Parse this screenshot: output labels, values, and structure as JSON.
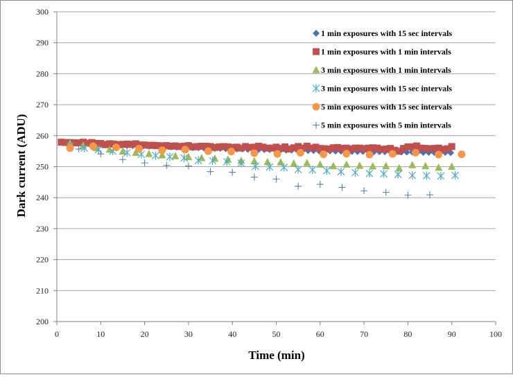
{
  "chart_data": {
    "type": "scatter",
    "title": "",
    "xlabel": "Time (min)",
    "ylabel": "Dark current (ADU)",
    "xlim": [
      0,
      100
    ],
    "ylim": [
      200,
      300
    ],
    "xticks": [
      0,
      10,
      20,
      30,
      40,
      50,
      60,
      70,
      80,
      90,
      100
    ],
    "yticks": [
      200,
      210,
      220,
      230,
      240,
      250,
      260,
      270,
      280,
      290,
      300
    ],
    "grid": "horizontal",
    "legend_position": "top-right",
    "series": [
      {
        "name": "1 min exposures with 15 sec intervals",
        "marker": "diamond",
        "color": "#4472C4",
        "x": [
          1,
          2.25,
          3.5,
          4.75,
          6,
          7.25,
          8.5,
          9.75,
          11,
          12.25,
          13.5,
          14.75,
          16,
          17.25,
          18.5,
          19.75,
          21,
          22.25,
          23.5,
          24.75,
          26,
          27.25,
          28.5,
          29.75,
          31,
          32.25,
          33.5,
          34.75,
          36,
          37.25,
          38.5,
          39.75,
          41,
          42.25,
          43.5,
          44.75,
          46,
          47.25,
          48.5,
          49.75,
          51,
          52.25,
          53.5,
          54.75,
          56,
          57.25,
          58.5,
          59.75,
          61,
          62.25,
          63.5,
          64.75,
          66,
          67.25,
          68.5,
          69.75,
          71,
          72.25,
          73.5,
          74.75,
          76,
          77.25,
          78.5,
          79.75,
          81,
          82.25,
          83.5,
          84.75,
          86,
          87.25,
          88.5,
          89.75
        ],
        "y": [
          257.9,
          257.8,
          257.7,
          257.6,
          257.5,
          257.4,
          257.4,
          257.3,
          257.2,
          257.1,
          257.0,
          257.0,
          256.9,
          256.8,
          256.8,
          256.7,
          256.6,
          256.6,
          256.5,
          256.4,
          256.4,
          256.3,
          256.3,
          256.2,
          256.1,
          256.1,
          256.0,
          256.0,
          255.9,
          255.9,
          255.8,
          255.8,
          255.7,
          255.7,
          255.6,
          255.6,
          255.5,
          255.5,
          255.5,
          255.4,
          255.4,
          255.3,
          255.3,
          255.3,
          255.2,
          255.2,
          255.2,
          255.1,
          255.1,
          255.1,
          255.0,
          255.0,
          255.0,
          254.9,
          254.9,
          254.9,
          254.9,
          254.8,
          254.8,
          254.8,
          254.8,
          254.7,
          254.7,
          254.7,
          254.7,
          254.7,
          254.6,
          254.6,
          254.6,
          254.6,
          254.6,
          254.5
        ]
      },
      {
        "name": "1 min exposures with 1 min intervals",
        "marker": "square",
        "color": "#C0504D",
        "x": [
          1,
          2,
          3,
          4,
          5,
          6,
          7,
          8,
          9,
          10,
          11,
          12,
          13,
          14,
          15,
          16,
          17,
          18,
          19,
          20,
          21,
          22,
          23,
          24,
          25,
          26,
          27,
          28,
          29,
          30,
          31,
          32,
          33,
          34,
          35,
          36,
          37,
          38,
          39,
          40,
          41,
          42,
          43,
          44,
          45,
          46,
          47,
          48,
          49,
          50,
          51,
          52,
          53,
          54,
          55,
          56,
          57,
          58,
          59,
          60,
          61,
          62,
          63,
          64,
          65,
          66,
          67,
          68,
          69,
          70,
          71,
          72,
          73,
          74,
          75,
          76,
          77,
          78,
          79,
          80,
          81,
          82,
          83,
          84,
          85,
          86,
          87,
          88,
          89,
          90
        ],
        "y": [
          257.9,
          257.8,
          257.8,
          257.7,
          257.7,
          257.9,
          257.6,
          257.8,
          257.5,
          257.5,
          257.1,
          257.4,
          257.3,
          257.1,
          257.2,
          257.3,
          257.2,
          257.4,
          257.0,
          257.0,
          256.9,
          256.9,
          256.8,
          256.7,
          256.8,
          256.6,
          256.7,
          256.5,
          256.6,
          256.8,
          256.4,
          256.5,
          256.6,
          256.6,
          256.5,
          256.2,
          256.4,
          256.5,
          256.4,
          256.2,
          256.3,
          256.0,
          256.5,
          256.2,
          256.3,
          256.6,
          256.3,
          256.0,
          256.0,
          256.3,
          255.9,
          256.4,
          255.7,
          256.1,
          256.5,
          256.0,
          256.6,
          256.0,
          256.3,
          255.9,
          255.8,
          255.7,
          256.1,
          256.2,
          255.9,
          256.0,
          255.7,
          256.0,
          256.0,
          255.8,
          256.0,
          256.1,
          256.0,
          255.6,
          255.7,
          255.9,
          255.3,
          255.0,
          255.9,
          256.4,
          256.4,
          256.7,
          256.0,
          255.9,
          255.8,
          255.9,
          256.0,
          255.6,
          255.8,
          256.5
        ]
      },
      {
        "name": "3 min exposures with 1 min intervals",
        "marker": "triangle",
        "color": "#9BBB59",
        "x": [
          3,
          6,
          9,
          12,
          15,
          18,
          21,
          24,
          27,
          30,
          33,
          36,
          39,
          42,
          45,
          48,
          51,
          54,
          57,
          60,
          63,
          66,
          69,
          72,
          75,
          78,
          81,
          84,
          87,
          90
        ],
        "y": [
          257.4,
          256.8,
          256.0,
          255.5,
          254.9,
          254.5,
          254.1,
          253.7,
          253.4,
          253.1,
          252.8,
          252.6,
          252.3,
          251.9,
          251.8,
          251.5,
          251.4,
          251.0,
          251.2,
          250.7,
          250.2,
          250.7,
          250.3,
          250.1,
          250.2,
          249.5,
          250.5,
          250.2,
          249.7,
          250.0
        ]
      },
      {
        "name": "3 min exposures with 15 sec intervals",
        "marker": "asterisk",
        "color": "#4BACC6",
        "x": [
          3,
          6.25,
          9.5,
          12.75,
          16,
          19.25,
          22.5,
          25.75,
          29,
          32.25,
          35.5,
          38.75,
          42,
          45.25,
          48.5,
          51.75,
          55,
          58.25,
          61.5,
          64.75,
          68,
          71.25,
          74.5,
          77.75,
          81,
          84.25,
          87.5,
          90.75
        ],
        "y": [
          256.6,
          256.0,
          255.5,
          255.0,
          254.5,
          254.0,
          253.6,
          253.2,
          252.8,
          252.0,
          251.9,
          251.6,
          251.1,
          250.1,
          249.9,
          249.8,
          249.1,
          249.0,
          248.7,
          248.4,
          248.1,
          247.8,
          247.7,
          247.5,
          247.2,
          247.1,
          247.0,
          247.2
        ]
      },
      {
        "name": "5 min exposures with 15 sec intervals",
        "marker": "circle",
        "color": "#F79646",
        "x": [
          3,
          8.25,
          13.5,
          18.75,
          24,
          29.25,
          34.5,
          39.75,
          45,
          50.25,
          55.5,
          60.75,
          66,
          71.25,
          76.5,
          81.75,
          87,
          92.25
        ],
        "y": [
          256.0,
          256.6,
          256.2,
          255.8,
          255.3,
          255.5,
          255.0,
          254.9,
          254.4,
          254.1,
          254.5,
          254.0,
          254.2,
          253.9,
          254.1,
          254.5,
          253.9,
          254.0
        ]
      },
      {
        "name": "5 min exposures with 5 min intervals",
        "marker": "plus",
        "color": "#4F81BD",
        "x": [
          5,
          10,
          15,
          20,
          25,
          30,
          35,
          40,
          45,
          50,
          55,
          60,
          65,
          70,
          75,
          80,
          85
        ],
        "y": [
          255.7,
          254.1,
          252.3,
          251.2,
          250.4,
          250.2,
          248.4,
          248.2,
          246.6,
          246.0,
          243.7,
          244.3,
          243.3,
          242.2,
          241.7,
          240.8,
          240.9
        ]
      }
    ]
  }
}
